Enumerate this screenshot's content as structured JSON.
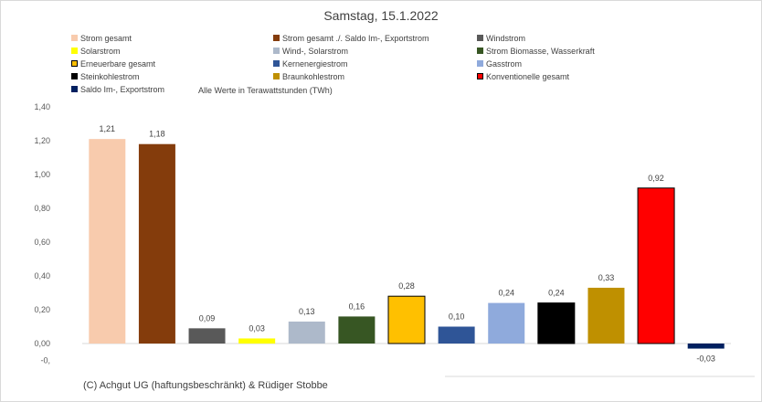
{
  "chart_data": {
    "type": "bar",
    "title": "Samstag, 15.1.2022",
    "note": "Alle Werte in Terawattstunden (TWh)",
    "copyright": "(C) Achgut UG (haftungsbeschränkt) & Rüdiger Stobbe",
    "ylim": [
      -0.1,
      1.4
    ],
    "yticks": [
      1.4,
      1.2,
      1.0,
      0.8,
      0.6,
      0.4,
      0.2,
      0.0,
      -0.1
    ],
    "ytick_labels": [
      "1,40",
      "1,20",
      "1,00",
      "0,80",
      "0,60",
      "0,40",
      "0,20",
      "0,00",
      "-0,"
    ],
    "categories": [
      "Strom gesamt",
      "Strom gesamt ./. Saldo Im-, Exportstrom",
      "Windstrom",
      "Solarstrom",
      "Wind-, Solarstrom",
      "Strom Biomasse, Wasserkraft",
      "Erneuerbare gesamt",
      "Kernenergiestrom",
      "Gasstrom",
      "Steinkohlestrom",
      "Braunkohlestrom",
      "Konventionelle gesamt",
      "Saldo Im-, Exportstrom"
    ],
    "values": [
      1.21,
      1.18,
      0.09,
      0.03,
      0.13,
      0.16,
      0.28,
      0.1,
      0.24,
      0.24,
      0.33,
      0.92,
      -0.03
    ],
    "value_labels": [
      "1,21",
      "1,18",
      "0,09",
      "0,03",
      "0,13",
      "0,16",
      "0,28",
      "0,10",
      "0,24",
      "0,24",
      "0,33",
      "0,92",
      "-0,03"
    ],
    "colors": [
      "#f8cbad",
      "#843c0c",
      "#595959",
      "#ffff00",
      "#adb9ca",
      "#375623",
      "#ffc000",
      "#2f5597",
      "#8faadc",
      "#000000",
      "#bf9000",
      "#ff0000",
      "#002060"
    ],
    "outlined": [
      false,
      false,
      false,
      false,
      false,
      false,
      true,
      false,
      false,
      true,
      false,
      true,
      false
    ],
    "legend_placement": "top",
    "grid": false
  }
}
